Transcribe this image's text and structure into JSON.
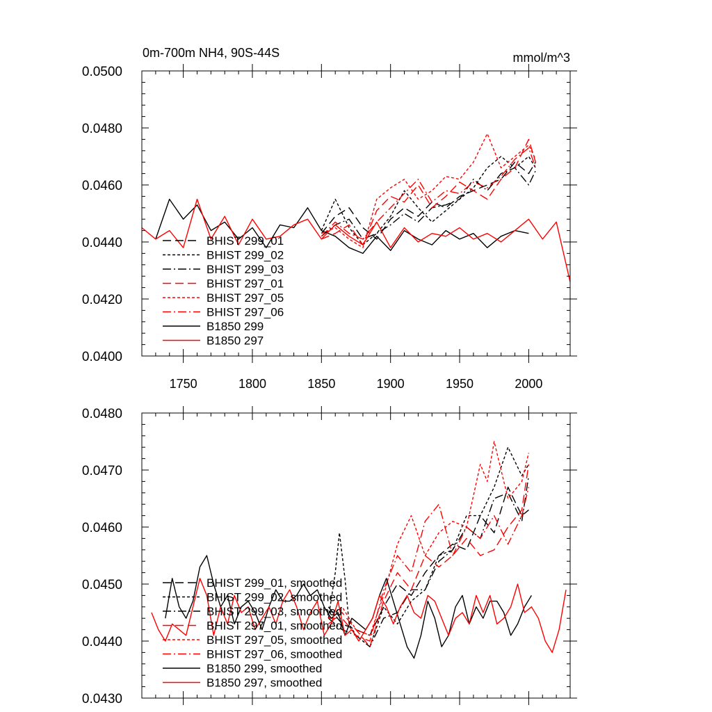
{
  "title_left": "0m-700m NH4, 90S-44S",
  "title_right": "mmol/m^3",
  "chart_data": [
    {
      "type": "line",
      "panel": "top",
      "xlim": [
        1720,
        2030
      ],
      "ylim": [
        0.04,
        0.05
      ],
      "x_ticks": [
        1750,
        1800,
        1850,
        1900,
        1950,
        2000
      ],
      "x_tick_labels": [
        "1750",
        "1800",
        "1850",
        "1900",
        "1950",
        "2000"
      ],
      "y_ticks": [
        0.04,
        0.042,
        0.044,
        0.046,
        0.048,
        0.05
      ],
      "y_tick_labels": [
        "0.0400",
        "0.0420",
        "0.0440",
        "0.0460",
        "0.0480",
        "0.0500"
      ],
      "grid": false,
      "legend_position": "lower-left",
      "series": [
        {
          "name": "BHIST 299_01",
          "color": "#000000",
          "dash": "long-dash",
          "x": [
            1850,
            1860,
            1870,
            1880,
            1890,
            1900,
            1910,
            1920,
            1930,
            1940,
            1950,
            1960,
            1970,
            1980,
            1990,
            2000,
            2005
          ],
          "values": [
            0.0443,
            0.0449,
            0.0452,
            0.0445,
            0.0441,
            0.0448,
            0.0452,
            0.0449,
            0.0454,
            0.0452,
            0.0456,
            0.0458,
            0.046,
            0.0462,
            0.0468,
            0.0464,
            0.0468
          ]
        },
        {
          "name": "BHIST 299_02",
          "color": "#000000",
          "dash": "short-dash",
          "x": [
            1850,
            1860,
            1870,
            1880,
            1890,
            1900,
            1910,
            1920,
            1930,
            1940,
            1950,
            1960,
            1970,
            1980,
            1990,
            2000,
            2005
          ],
          "values": [
            0.0444,
            0.0455,
            0.0445,
            0.0439,
            0.0443,
            0.0449,
            0.0458,
            0.0452,
            0.0447,
            0.0451,
            0.0455,
            0.0459,
            0.0466,
            0.047,
            0.0466,
            0.047,
            0.0466
          ]
        },
        {
          "name": "BHIST 299_03",
          "color": "#000000",
          "dash": "dash-dot",
          "x": [
            1850,
            1860,
            1870,
            1880,
            1890,
            1900,
            1910,
            1920,
            1930,
            1940,
            1950,
            1960,
            1970,
            1980,
            1990,
            2000,
            2005
          ],
          "values": [
            0.0442,
            0.0446,
            0.0448,
            0.0441,
            0.0443,
            0.0446,
            0.045,
            0.0447,
            0.0452,
            0.0453,
            0.0455,
            0.0462,
            0.0458,
            0.0464,
            0.0466,
            0.046,
            0.0465
          ]
        },
        {
          "name": "BHIST 297_01",
          "color": "#ff0000",
          "dash": "long-dash",
          "x": [
            1850,
            1860,
            1870,
            1880,
            1890,
            1900,
            1910,
            1920,
            1930,
            1940,
            1950,
            1960,
            1970,
            1980,
            1990,
            2000,
            2005
          ],
          "values": [
            0.0441,
            0.0443,
            0.0446,
            0.0439,
            0.0451,
            0.0456,
            0.0454,
            0.046,
            0.0452,
            0.0456,
            0.0461,
            0.0458,
            0.0455,
            0.0462,
            0.0466,
            0.0476,
            0.0468
          ]
        },
        {
          "name": "BHIST 297_05",
          "color": "#ff0000",
          "dash": "short-dash",
          "x": [
            1850,
            1860,
            1870,
            1880,
            1890,
            1900,
            1910,
            1920,
            1930,
            1940,
            1950,
            1960,
            1970,
            1980,
            1990,
            2000,
            2005
          ],
          "values": [
            0.0443,
            0.0445,
            0.0441,
            0.0438,
            0.0455,
            0.0459,
            0.0462,
            0.0455,
            0.0458,
            0.0463,
            0.0462,
            0.0468,
            0.0478,
            0.0466,
            0.047,
            0.0474,
            0.0469
          ]
        },
        {
          "name": "BHIST 297_06",
          "color": "#ff0000",
          "dash": "dash-dot",
          "x": [
            1850,
            1860,
            1870,
            1880,
            1890,
            1900,
            1910,
            1920,
            1930,
            1940,
            1950,
            1960,
            1970,
            1980,
            1990,
            2000,
            2005
          ],
          "values": [
            0.0442,
            0.0447,
            0.0443,
            0.0441,
            0.0447,
            0.0452,
            0.0457,
            0.0462,
            0.0454,
            0.0458,
            0.0457,
            0.0461,
            0.0459,
            0.0463,
            0.0469,
            0.0473,
            0.0466
          ]
        },
        {
          "name": "B1850 299",
          "color": "#000000",
          "dash": "solid",
          "x": [
            1730,
            1740,
            1750,
            1760,
            1770,
            1780,
            1790,
            1800,
            1810,
            1820,
            1830,
            1840,
            1850,
            1860,
            1870,
            1880,
            1890,
            1900,
            1910,
            1920,
            1930,
            1940,
            1950,
            1960,
            1970,
            1980,
            1990,
            2000
          ],
          "values": [
            0.0441,
            0.0455,
            0.0448,
            0.0453,
            0.0444,
            0.0447,
            0.0441,
            0.0445,
            0.0438,
            0.0446,
            0.0445,
            0.0452,
            0.0444,
            0.0442,
            0.0438,
            0.0436,
            0.0442,
            0.0437,
            0.0444,
            0.0441,
            0.0439,
            0.0444,
            0.0441,
            0.0443,
            0.0438,
            0.0442,
            0.0444,
            0.0443
          ]
        },
        {
          "name": "B1850 297",
          "color": "#ff0000",
          "dash": "solid",
          "x": [
            1720,
            1730,
            1740,
            1750,
            1760,
            1770,
            1780,
            1790,
            1800,
            1810,
            1820,
            1830,
            1840,
            1850,
            1860,
            1870,
            1880,
            1890,
            1900,
            1910,
            1920,
            1930,
            1940,
            1950,
            1960,
            1970,
            1980,
            1990,
            2000,
            2010,
            2020,
            2030
          ],
          "values": [
            0.0445,
            0.0441,
            0.0444,
            0.0438,
            0.0455,
            0.0441,
            0.0449,
            0.0439,
            0.0448,
            0.0441,
            0.0442,
            0.0446,
            0.0448,
            0.0441,
            0.0446,
            0.0442,
            0.0439,
            0.0447,
            0.0438,
            0.0445,
            0.044,
            0.0443,
            0.0442,
            0.0445,
            0.0441,
            0.0443,
            0.044,
            0.0444,
            0.0448,
            0.0441,
            0.0447,
            0.0426
          ]
        }
      ]
    },
    {
      "type": "line",
      "panel": "bottom",
      "xlim": [
        1720,
        2030
      ],
      "ylim": [
        0.043,
        0.048
      ],
      "y_ticks": [
        0.043,
        0.044,
        0.045,
        0.046,
        0.047,
        0.048
      ],
      "y_tick_labels": [
        "0.0430",
        "0.0440",
        "0.0450",
        "0.0460",
        "0.0470",
        "0.0480"
      ],
      "grid": false,
      "legend_position": "lower-left",
      "series": [
        {
          "name": "BHIST 299_01, smoothed",
          "color": "#000000",
          "dash": "long-dash",
          "x": [
            1855,
            1865,
            1875,
            1885,
            1895,
            1905,
            1915,
            1925,
            1935,
            1945,
            1955,
            1965,
            1975,
            1985,
            1995,
            2000
          ],
          "values": [
            0.0446,
            0.0443,
            0.0442,
            0.0441,
            0.0446,
            0.045,
            0.0448,
            0.0452,
            0.0455,
            0.0457,
            0.0456,
            0.0462,
            0.0459,
            0.0467,
            0.0462,
            0.0463
          ]
        },
        {
          "name": "BHIST 299_02, smoothed",
          "color": "#000000",
          "dash": "short-dash",
          "x": [
            1855,
            1860,
            1863,
            1867,
            1870,
            1875,
            1885,
            1895,
            1905,
            1915,
            1925,
            1935,
            1945,
            1955,
            1965,
            1975,
            1985,
            1995,
            2000
          ],
          "values": [
            0.0444,
            0.0452,
            0.0459,
            0.0451,
            0.0443,
            0.0441,
            0.0439,
            0.0446,
            0.0443,
            0.0447,
            0.0449,
            0.0455,
            0.0456,
            0.0462,
            0.0462,
            0.0467,
            0.0474,
            0.0469,
            0.0471
          ]
        },
        {
          "name": "BHIST 299_03, smoothed",
          "color": "#000000",
          "dash": "dash-dot",
          "x": [
            1855,
            1865,
            1875,
            1885,
            1895,
            1905,
            1915,
            1925,
            1935,
            1945,
            1955,
            1965,
            1975,
            1985,
            1995,
            2000
          ],
          "values": [
            0.0444,
            0.0442,
            0.0441,
            0.0439,
            0.0444,
            0.0445,
            0.0449,
            0.0449,
            0.0454,
            0.0456,
            0.046,
            0.0458,
            0.0465,
            0.0466,
            0.0461,
            0.0469
          ]
        },
        {
          "name": "BHIST 297_01, smoothed",
          "color": "#ff0000",
          "dash": "long-dash",
          "x": [
            1855,
            1865,
            1875,
            1885,
            1895,
            1905,
            1915,
            1925,
            1935,
            1945,
            1955,
            1965,
            1975,
            1985,
            1995,
            2000
          ],
          "values": [
            0.0443,
            0.0445,
            0.0442,
            0.0439,
            0.0447,
            0.0452,
            0.0449,
            0.0455,
            0.0453,
            0.0455,
            0.0458,
            0.0455,
            0.0456,
            0.046,
            0.0463,
            0.0471
          ]
        },
        {
          "name": "BHIST 297_05, smoothed",
          "color": "#ff0000",
          "dash": "short-dash",
          "x": [
            1855,
            1865,
            1875,
            1885,
            1895,
            1905,
            1915,
            1925,
            1935,
            1945,
            1955,
            1965,
            1970,
            1975,
            1985,
            1995,
            2000
          ],
          "values": [
            0.0444,
            0.0446,
            0.0442,
            0.0441,
            0.0448,
            0.0457,
            0.0462,
            0.0455,
            0.0459,
            0.0461,
            0.046,
            0.0471,
            0.0468,
            0.0475,
            0.0465,
            0.0468,
            0.0473
          ]
        },
        {
          "name": "BHIST 297_06, smoothed",
          "color": "#ff0000",
          "dash": "dash-dot",
          "x": [
            1855,
            1865,
            1875,
            1885,
            1895,
            1905,
            1915,
            1925,
            1935,
            1945,
            1955,
            1965,
            1975,
            1985,
            1995,
            2000
          ],
          "values": [
            0.0444,
            0.0444,
            0.0441,
            0.044,
            0.0449,
            0.0455,
            0.0452,
            0.0461,
            0.0464,
            0.0455,
            0.046,
            0.0458,
            0.0462,
            0.0457,
            0.0462,
            0.0467
          ]
        },
        {
          "name": "B1850 299, smoothed",
          "color": "#000000",
          "dash": "solid",
          "x": [
            1737,
            1742,
            1747,
            1752,
            1757,
            1762,
            1767,
            1772,
            1777,
            1782,
            1787,
            1792,
            1797,
            1802,
            1807,
            1812,
            1817,
            1822,
            1827,
            1832,
            1837,
            1842,
            1847,
            1852,
            1857,
            1862,
            1867,
            1872,
            1877,
            1882,
            1887,
            1892,
            1897,
            1902,
            1907,
            1912,
            1917,
            1922,
            1927,
            1932,
            1937,
            1942,
            1947,
            1952,
            1957,
            1962,
            1967,
            1972,
            1977,
            1982,
            1987,
            1992,
            1997,
            2002
          ],
          "values": [
            0.0444,
            0.0451,
            0.0446,
            0.0444,
            0.0447,
            0.0453,
            0.0455,
            0.045,
            0.0446,
            0.0448,
            0.0443,
            0.0446,
            0.0447,
            0.0445,
            0.0442,
            0.0446,
            0.0449,
            0.0447,
            0.0447,
            0.0448,
            0.045,
            0.0448,
            0.0449,
            0.0446,
            0.0444,
            0.0445,
            0.0441,
            0.0444,
            0.0443,
            0.0442,
            0.0444,
            0.0448,
            0.0451,
            0.0447,
            0.0443,
            0.0439,
            0.0437,
            0.0441,
            0.0447,
            0.0444,
            0.0439,
            0.0441,
            0.0446,
            0.0448,
            0.0443,
            0.0446,
            0.0444,
            0.0447,
            0.0447,
            0.0445,
            0.0441,
            0.0443,
            0.0446,
            0.0448
          ]
        },
        {
          "name": "B1850 297, smoothed",
          "color": "#ff0000",
          "dash": "solid",
          "x": [
            1727,
            1732,
            1737,
            1742,
            1747,
            1752,
            1757,
            1762,
            1767,
            1772,
            1777,
            1782,
            1787,
            1792,
            1797,
            1802,
            1807,
            1812,
            1817,
            1822,
            1827,
            1832,
            1837,
            1842,
            1847,
            1852,
            1857,
            1862,
            1867,
            1872,
            1877,
            1882,
            1887,
            1892,
            1897,
            1902,
            1907,
            1912,
            1917,
            1922,
            1927,
            1932,
            1937,
            1942,
            1947,
            1952,
            1957,
            1962,
            1967,
            1972,
            1977,
            1982,
            1987,
            1992,
            1997,
            2002,
            2007,
            2012,
            2017,
            2022,
            2027
          ],
          "values": [
            0.0445,
            0.0442,
            0.044,
            0.0443,
            0.0442,
            0.0441,
            0.0446,
            0.0451,
            0.0448,
            0.0441,
            0.0446,
            0.0443,
            0.0448,
            0.0445,
            0.0446,
            0.0442,
            0.0444,
            0.0446,
            0.0443,
            0.0447,
            0.0449,
            0.0446,
            0.0442,
            0.0445,
            0.0447,
            0.0441,
            0.0443,
            0.0447,
            0.0441,
            0.0442,
            0.044,
            0.0442,
            0.0444,
            0.0448,
            0.0446,
            0.0443,
            0.0446,
            0.0448,
            0.0445,
            0.0444,
            0.0448,
            0.0447,
            0.0444,
            0.0441,
            0.0444,
            0.0445,
            0.0443,
            0.0448,
            0.0445,
            0.0448,
            0.0443,
            0.0444,
            0.0446,
            0.045,
            0.0445,
            0.0446,
            0.0444,
            0.044,
            0.0438,
            0.0442,
            0.0449
          ]
        }
      ]
    }
  ]
}
